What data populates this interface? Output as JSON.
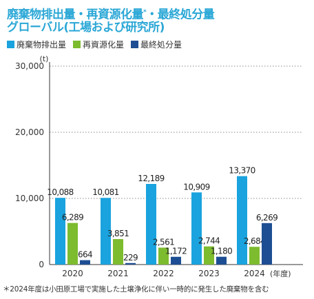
{
  "header": {
    "title_line1": "廃棄物排出量・再資源化量",
    "title_sup": "*",
    "title_line1_tail": "・最終処分量",
    "title_line2": "グローバル(工場および研究所)"
  },
  "footnote": "＊2024年度は小田原工場で実施した土壌浄化に伴い一時的に発生した廃棄物を含む",
  "chart_data": {
    "type": "bar",
    "unit_label": "(t)",
    "x_unit_label": "(年度)",
    "categories": [
      "2020",
      "2021",
      "2022",
      "2023",
      "2024"
    ],
    "series": [
      {
        "name": "廃棄物排出量",
        "color": "#1aa3de",
        "values": [
          10088,
          10081,
          12189,
          10909,
          13370
        ],
        "labels": [
          "10,088",
          "10,081",
          "12,189",
          "10,909",
          "13,370"
        ]
      },
      {
        "name": "再資源化量",
        "color": "#7dbb2f",
        "values": [
          6289,
          3851,
          2561,
          2744,
          2684
        ],
        "labels": [
          "6,289",
          "3,851",
          "2,561",
          "2,744",
          "2,684"
        ]
      },
      {
        "name": "最終処分量",
        "color": "#1d4e93",
        "values": [
          664,
          229,
          1172,
          1180,
          6269
        ],
        "labels": [
          "664",
          "229",
          "1,172",
          "1,180",
          "6,269"
        ]
      }
    ],
    "ylim": [
      0,
      30000
    ],
    "yticks": [
      0,
      10000,
      20000,
      30000
    ],
    "ytick_labels": [
      "0",
      "10,000",
      "20,000",
      "30,000"
    ],
    "grid": "dotted-horizontal",
    "legend": "top-left"
  }
}
